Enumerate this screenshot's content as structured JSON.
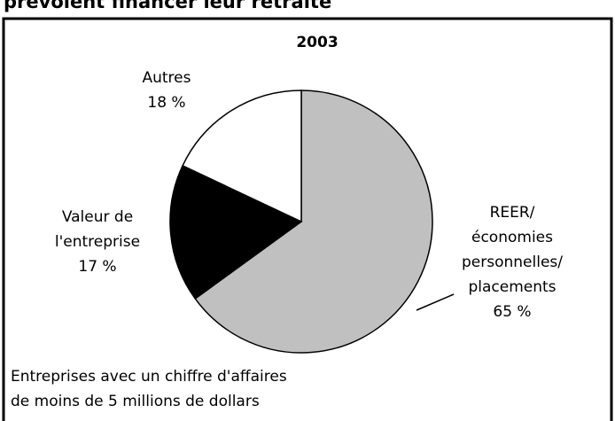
{
  "chart_data": {
    "type": "pie",
    "title": "prévoient financer leur retraite",
    "subtitle": "2003",
    "categories": [
      [
        "REER/",
        "économies",
        "personnelles/",
        "placements"
      ],
      [
        "Valeur de",
        "l'entreprise"
      ],
      [
        "Autres"
      ]
    ],
    "values": [
      65,
      17,
      18
    ],
    "value_labels": [
      "65 %",
      "17 %",
      "18 %"
    ],
    "colors": [
      "#c0c0c0",
      "#000000",
      "#ffffff"
    ],
    "note": [
      "Entreprises avec un chiffre d'affaires",
      "de moins de 5 millions de dollars"
    ]
  }
}
